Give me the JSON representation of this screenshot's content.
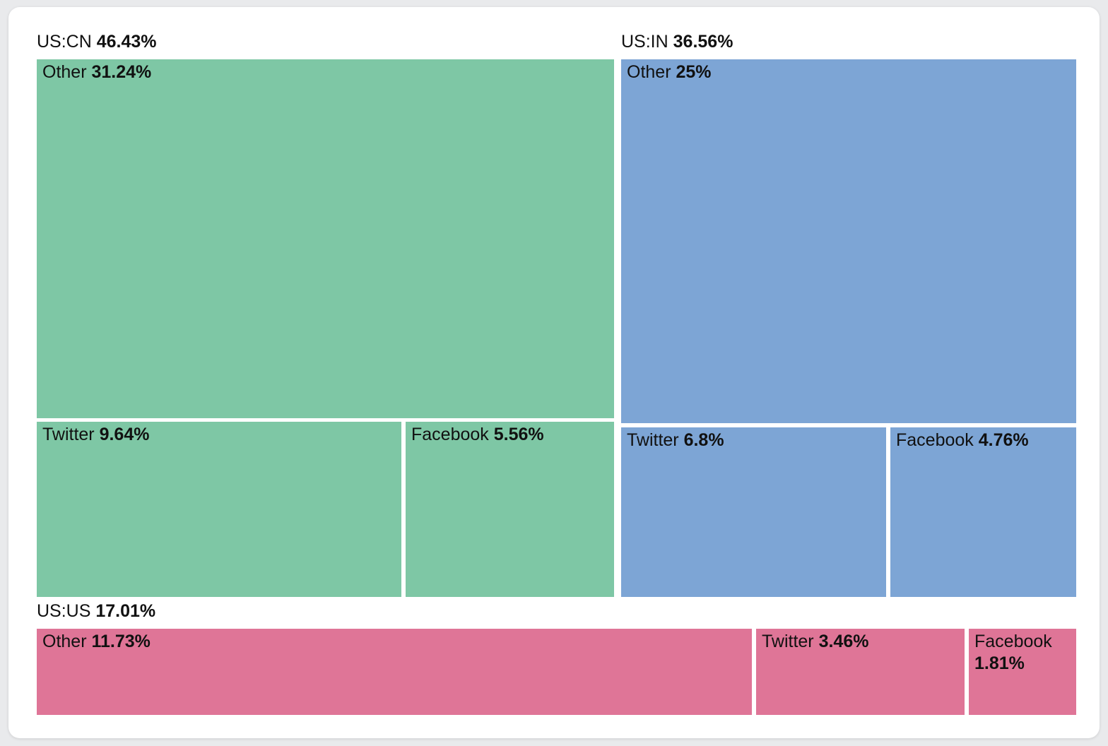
{
  "chart_data": {
    "type": "treemap",
    "title": "",
    "legend_position": "none",
    "grid": false,
    "groups": [
      {
        "name": "US:CN",
        "pct": "46.43%",
        "value": 46.43,
        "color": "#7ec7a5",
        "children": [
          {
            "name": "Other",
            "pct": "31.24%",
            "value": 31.24
          },
          {
            "name": "Twitter",
            "pct": "9.64%",
            "value": 9.64
          },
          {
            "name": "Facebook",
            "pct": "5.56%",
            "value": 5.56
          }
        ]
      },
      {
        "name": "US:IN",
        "pct": "36.56%",
        "value": 36.56,
        "color": "#7da5d5",
        "children": [
          {
            "name": "Other",
            "pct": "25%",
            "value": 25.0
          },
          {
            "name": "Twitter",
            "pct": "6.8%",
            "value": 6.8
          },
          {
            "name": "Facebook",
            "pct": "4.76%",
            "value": 4.76
          }
        ]
      },
      {
        "name": "US:US",
        "pct": "17.01%",
        "value": 17.01,
        "color": "#df7597",
        "children": [
          {
            "name": "Other",
            "pct": "11.73%",
            "value": 11.73
          },
          {
            "name": "Twitter",
            "pct": "3.46%",
            "value": 3.46
          },
          {
            "name": "Facebook",
            "pct": "1.81%",
            "value": 1.81
          }
        ]
      }
    ]
  }
}
